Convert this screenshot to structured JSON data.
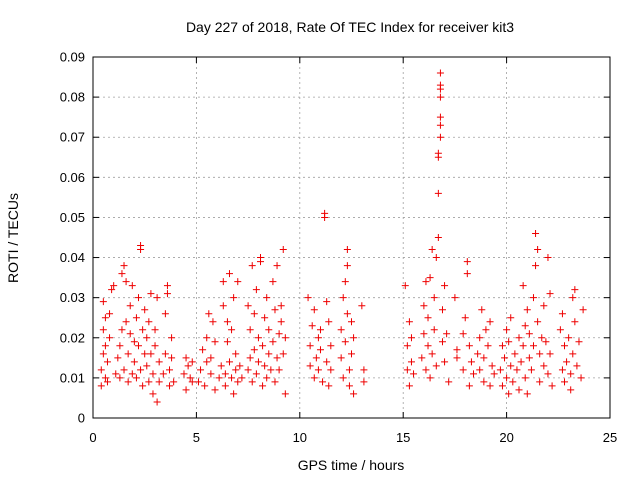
{
  "chart_data": {
    "type": "scatter",
    "title": "Day 227 of 2018, Rate Of TEC Index for receiver kit3",
    "xlabel": "GPS time / hours",
    "ylabel": "ROTI / TECUs",
    "xlim": [
      0,
      25
    ],
    "ylim": [
      0,
      0.09
    ],
    "xticks": [
      0,
      5,
      10,
      15,
      20,
      25
    ],
    "yticks": [
      0,
      0.01,
      0.02,
      0.03,
      0.04,
      0.05,
      0.06,
      0.07,
      0.08,
      0.09
    ],
    "xtick_labels": [
      "0",
      "5",
      "10",
      "15",
      "20",
      "25"
    ],
    "ytick_labels": [
      "0",
      "0.01",
      "0.02",
      "0.03",
      "0.04",
      "0.05",
      "0.06",
      "0.07",
      "0.08",
      "0.09"
    ],
    "grid": true,
    "marker": "+",
    "color": "#ee0000",
    "series": [
      {
        "name": "ROTI",
        "points": [
          [
            0.4,
            0.008
          ],
          [
            0.4,
            0.012
          ],
          [
            0.5,
            0.016
          ],
          [
            0.5,
            0.022
          ],
          [
            0.5,
            0.029
          ],
          [
            0.6,
            0.01
          ],
          [
            0.6,
            0.018
          ],
          [
            0.6,
            0.025
          ],
          [
            0.7,
            0.009
          ],
          [
            0.7,
            0.014
          ],
          [
            0.8,
            0.02
          ],
          [
            0.8,
            0.026
          ],
          [
            0.9,
            0.032
          ],
          [
            1.0,
            0.033
          ],
          [
            1.1,
            0.011
          ],
          [
            1.2,
            0.015
          ],
          [
            1.3,
            0.01
          ],
          [
            1.3,
            0.018
          ],
          [
            1.4,
            0.022
          ],
          [
            1.4,
            0.036
          ],
          [
            1.5,
            0.038
          ],
          [
            1.5,
            0.012
          ],
          [
            1.6,
            0.024
          ],
          [
            1.6,
            0.034
          ],
          [
            1.7,
            0.009
          ],
          [
            1.7,
            0.016
          ],
          [
            1.8,
            0.028
          ],
          [
            1.8,
            0.021
          ],
          [
            1.9,
            0.011
          ],
          [
            1.9,
            0.033
          ],
          [
            2.0,
            0.014
          ],
          [
            2.0,
            0.019
          ],
          [
            2.1,
            0.01
          ],
          [
            2.1,
            0.025
          ],
          [
            2.2,
            0.018
          ],
          [
            2.2,
            0.03
          ],
          [
            2.3,
            0.042
          ],
          [
            2.3,
            0.043
          ],
          [
            2.3,
            0.012
          ],
          [
            2.4,
            0.022
          ],
          [
            2.4,
            0.008
          ],
          [
            2.5,
            0.016
          ],
          [
            2.5,
            0.027
          ],
          [
            2.6,
            0.013
          ],
          [
            2.6,
            0.02
          ],
          [
            2.7,
            0.009
          ],
          [
            2.7,
            0.024
          ],
          [
            2.8,
            0.031
          ],
          [
            2.8,
            0.016
          ],
          [
            2.9,
            0.011
          ],
          [
            2.9,
            0.006
          ],
          [
            3.0,
            0.018
          ],
          [
            3.0,
            0.022
          ],
          [
            3.1,
            0.004
          ],
          [
            3.1,
            0.03
          ],
          [
            3.2,
            0.014
          ],
          [
            3.2,
            0.009
          ],
          [
            3.4,
            0.011
          ],
          [
            3.5,
            0.016
          ],
          [
            3.5,
            0.026
          ],
          [
            3.6,
            0.031
          ],
          [
            3.6,
            0.033
          ],
          [
            3.7,
            0.008
          ],
          [
            3.7,
            0.012
          ],
          [
            3.8,
            0.02
          ],
          [
            3.8,
            0.015
          ],
          [
            3.9,
            0.009
          ],
          [
            4.4,
            0.011
          ],
          [
            4.5,
            0.007
          ],
          [
            4.5,
            0.015
          ],
          [
            4.6,
            0.013
          ],
          [
            4.7,
            0.01
          ],
          [
            4.8,
            0.009
          ],
          [
            4.8,
            0.014
          ],
          [
            5.1,
            0.009
          ],
          [
            5.2,
            0.012
          ],
          [
            5.3,
            0.017
          ],
          [
            5.4,
            0.008
          ],
          [
            5.5,
            0.014
          ],
          [
            5.5,
            0.02
          ],
          [
            5.6,
            0.026
          ],
          [
            5.7,
            0.011
          ],
          [
            5.7,
            0.015
          ],
          [
            5.8,
            0.024
          ],
          [
            5.9,
            0.007
          ],
          [
            5.9,
            0.019
          ],
          [
            6.1,
            0.01
          ],
          [
            6.2,
            0.013
          ],
          [
            6.3,
            0.028
          ],
          [
            6.3,
            0.034
          ],
          [
            6.4,
            0.011
          ],
          [
            6.4,
            0.008
          ],
          [
            6.5,
            0.019
          ],
          [
            6.5,
            0.024
          ],
          [
            6.6,
            0.036
          ],
          [
            6.6,
            0.014
          ],
          [
            6.7,
            0.01
          ],
          [
            6.7,
            0.022
          ],
          [
            6.8,
            0.03
          ],
          [
            6.8,
            0.006
          ],
          [
            6.9,
            0.012
          ],
          [
            6.9,
            0.016
          ],
          [
            7.0,
            0.009
          ],
          [
            7.0,
            0.034
          ],
          [
            7.1,
            0.013
          ],
          [
            7.2,
            0.01
          ],
          [
            7.5,
            0.012
          ],
          [
            7.5,
            0.028
          ],
          [
            7.6,
            0.015
          ],
          [
            7.6,
            0.022
          ],
          [
            7.7,
            0.009
          ],
          [
            7.7,
            0.038
          ],
          [
            7.8,
            0.026
          ],
          [
            7.8,
            0.017
          ],
          [
            7.9,
            0.011
          ],
          [
            7.9,
            0.032
          ],
          [
            8.0,
            0.02
          ],
          [
            8.0,
            0.014
          ],
          [
            8.1,
            0.039
          ],
          [
            8.1,
            0.04
          ],
          [
            8.2,
            0.018
          ],
          [
            8.2,
            0.008
          ],
          [
            8.3,
            0.025
          ],
          [
            8.3,
            0.013
          ],
          [
            8.4,
            0.03
          ],
          [
            8.4,
            0.01
          ],
          [
            8.5,
            0.016
          ],
          [
            8.5,
            0.022
          ],
          [
            8.6,
            0.012
          ],
          [
            8.7,
            0.034
          ],
          [
            8.7,
            0.019
          ],
          [
            8.8,
            0.027
          ],
          [
            8.8,
            0.009
          ],
          [
            8.9,
            0.038
          ],
          [
            8.9,
            0.015
          ],
          [
            9.0,
            0.021
          ],
          [
            9.0,
            0.012
          ],
          [
            9.1,
            0.024
          ],
          [
            9.1,
            0.028
          ],
          [
            9.2,
            0.042
          ],
          [
            9.2,
            0.016
          ],
          [
            9.3,
            0.006
          ],
          [
            9.3,
            0.02
          ],
          [
            10.4,
            0.03
          ],
          [
            10.5,
            0.013
          ],
          [
            10.5,
            0.018
          ],
          [
            10.6,
            0.023
          ],
          [
            10.7,
            0.01
          ],
          [
            10.7,
            0.027
          ],
          [
            10.8,
            0.015
          ],
          [
            10.9,
            0.02
          ],
          [
            10.9,
            0.012
          ],
          [
            11.0,
            0.017
          ],
          [
            11.0,
            0.022
          ],
          [
            11.1,
            0.009
          ],
          [
            11.2,
            0.051
          ],
          [
            11.2,
            0.05
          ],
          [
            11.3,
            0.029
          ],
          [
            11.3,
            0.014
          ],
          [
            11.4,
            0.008
          ],
          [
            11.4,
            0.024
          ],
          [
            11.5,
            0.012
          ],
          [
            11.5,
            0.018
          ],
          [
            12.0,
            0.015
          ],
          [
            12.0,
            0.022
          ],
          [
            12.1,
            0.01
          ],
          [
            12.1,
            0.03
          ],
          [
            12.2,
            0.019
          ],
          [
            12.2,
            0.034
          ],
          [
            12.3,
            0.042
          ],
          [
            12.3,
            0.038
          ],
          [
            12.3,
            0.026
          ],
          [
            12.4,
            0.012
          ],
          [
            12.4,
            0.008
          ],
          [
            12.5,
            0.016
          ],
          [
            12.5,
            0.024
          ],
          [
            12.6,
            0.006
          ],
          [
            12.6,
            0.02
          ],
          [
            13.0,
            0.028
          ],
          [
            13.1,
            0.012
          ],
          [
            13.1,
            0.009
          ],
          [
            15.1,
            0.033
          ],
          [
            15.2,
            0.012
          ],
          [
            15.2,
            0.018
          ],
          [
            15.3,
            0.024
          ],
          [
            15.3,
            0.008
          ],
          [
            15.4,
            0.014
          ],
          [
            15.4,
            0.02
          ],
          [
            15.5,
            0.011
          ],
          [
            15.9,
            0.015
          ],
          [
            16.0,
            0.021
          ],
          [
            16.0,
            0.028
          ],
          [
            16.1,
            0.012
          ],
          [
            16.1,
            0.034
          ],
          [
            16.2,
            0.018
          ],
          [
            16.2,
            0.025
          ],
          [
            16.3,
            0.01
          ],
          [
            16.3,
            0.035
          ],
          [
            16.4,
            0.042
          ],
          [
            16.4,
            0.016
          ],
          [
            16.5,
            0.022
          ],
          [
            16.5,
            0.03
          ],
          [
            16.6,
            0.013
          ],
          [
            16.6,
            0.04
          ],
          [
            16.7,
            0.045
          ],
          [
            16.7,
            0.056
          ],
          [
            16.7,
            0.065
          ],
          [
            16.7,
            0.066
          ],
          [
            16.8,
            0.07
          ],
          [
            16.8,
            0.073
          ],
          [
            16.8,
            0.075
          ],
          [
            16.8,
            0.08
          ],
          [
            16.8,
            0.082
          ],
          [
            16.8,
            0.083
          ],
          [
            16.8,
            0.086
          ],
          [
            16.9,
            0.019
          ],
          [
            16.9,
            0.027
          ],
          [
            17.0,
            0.014
          ],
          [
            17.0,
            0.033
          ],
          [
            17.1,
            0.021
          ],
          [
            17.2,
            0.009
          ],
          [
            17.5,
            0.03
          ],
          [
            17.6,
            0.017
          ],
          [
            17.6,
            0.015
          ],
          [
            17.9,
            0.021
          ],
          [
            17.9,
            0.012
          ],
          [
            18.0,
            0.025
          ],
          [
            18.1,
            0.036
          ],
          [
            18.1,
            0.039
          ],
          [
            18.2,
            0.008
          ],
          [
            18.2,
            0.018
          ],
          [
            18.3,
            0.014
          ],
          [
            18.4,
            0.011
          ],
          [
            18.6,
            0.016
          ],
          [
            18.7,
            0.02
          ],
          [
            18.7,
            0.012
          ],
          [
            18.8,
            0.027
          ],
          [
            18.9,
            0.009
          ],
          [
            18.9,
            0.015
          ],
          [
            19.0,
            0.022
          ],
          [
            19.1,
            0.018
          ],
          [
            19.2,
            0.008
          ],
          [
            19.2,
            0.024
          ],
          [
            19.3,
            0.013
          ],
          [
            19.4,
            0.011
          ],
          [
            19.7,
            0.012
          ],
          [
            19.8,
            0.018
          ],
          [
            19.8,
            0.008
          ],
          [
            19.9,
            0.015
          ],
          [
            20.0,
            0.022
          ],
          [
            20.0,
            0.01
          ],
          [
            20.1,
            0.006
          ],
          [
            20.1,
            0.019
          ],
          [
            20.2,
            0.013
          ],
          [
            20.2,
            0.025
          ],
          [
            20.3,
            0.009
          ],
          [
            20.4,
            0.016
          ],
          [
            20.5,
            0.012
          ],
          [
            20.6,
            0.02
          ],
          [
            20.6,
            0.007
          ],
          [
            20.7,
            0.014
          ],
          [
            20.8,
            0.033
          ],
          [
            20.8,
            0.018
          ],
          [
            20.9,
            0.01
          ],
          [
            20.9,
            0.023
          ],
          [
            21.0,
            0.006
          ],
          [
            21.0,
            0.027
          ],
          [
            21.1,
            0.015
          ],
          [
            21.1,
            0.021
          ],
          [
            21.2,
            0.012
          ],
          [
            21.3,
            0.018
          ],
          [
            21.3,
            0.03
          ],
          [
            21.4,
            0.046
          ],
          [
            21.4,
            0.038
          ],
          [
            21.5,
            0.042
          ],
          [
            21.5,
            0.024
          ],
          [
            21.6,
            0.009
          ],
          [
            21.6,
            0.016
          ],
          [
            21.7,
            0.02
          ],
          [
            21.8,
            0.013
          ],
          [
            21.8,
            0.028
          ],
          [
            21.9,
            0.019
          ],
          [
            22.0,
            0.04
          ],
          [
            22.0,
            0.011
          ],
          [
            22.1,
            0.031
          ],
          [
            22.1,
            0.016
          ],
          [
            22.2,
            0.008
          ],
          [
            22.6,
            0.022
          ],
          [
            22.7,
            0.012
          ],
          [
            22.7,
            0.026
          ],
          [
            22.8,
            0.018
          ],
          [
            22.8,
            0.009
          ],
          [
            22.9,
            0.014
          ],
          [
            23.0,
            0.02
          ],
          [
            23.1,
            0.007
          ],
          [
            23.1,
            0.011
          ],
          [
            23.2,
            0.03
          ],
          [
            23.2,
            0.016
          ],
          [
            23.3,
            0.032
          ],
          [
            23.3,
            0.024
          ],
          [
            23.4,
            0.013
          ],
          [
            23.5,
            0.019
          ],
          [
            23.6,
            0.01
          ],
          [
            23.7,
            0.027
          ]
        ]
      }
    ]
  }
}
